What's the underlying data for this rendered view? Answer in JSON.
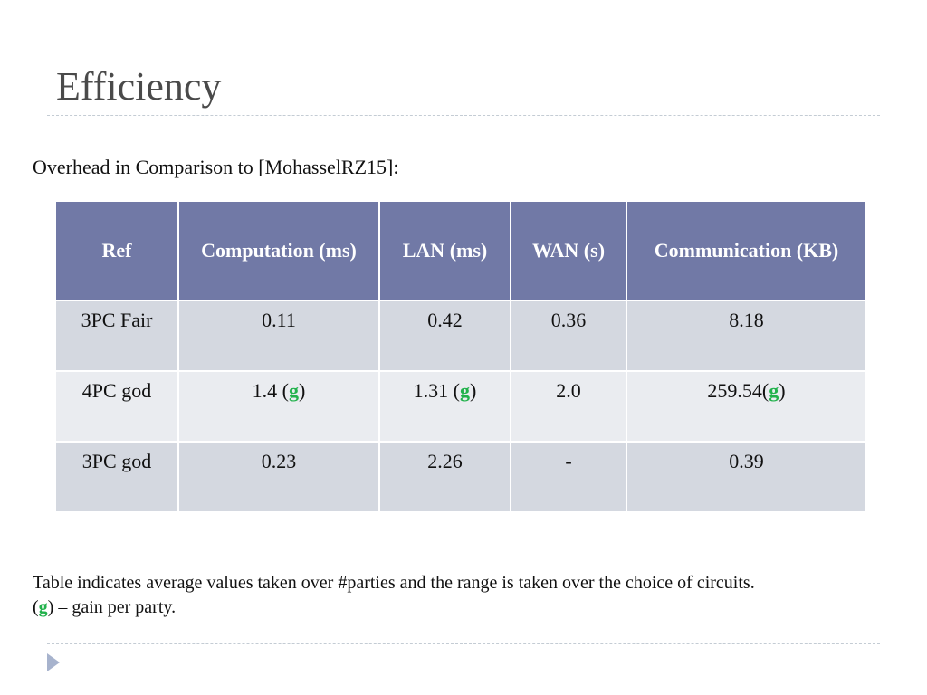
{
  "slide": {
    "title": "Efficiency",
    "subtitle": "Overhead in Comparison to [MohasselRZ15]:"
  },
  "table": {
    "headers": [
      "Ref",
      "Computation (ms)",
      "LAN (ms)",
      "WAN (s)",
      "Communication (KB)"
    ],
    "rows": [
      {
        "ref": "3PC Fair",
        "computation": {
          "value": "0.11",
          "open": "",
          "gain": "",
          "close": ""
        },
        "lan": {
          "value": "0.42",
          "open": "",
          "gain": "",
          "close": ""
        },
        "wan": "0.36",
        "communication": {
          "value": "8.18",
          "open": "",
          "gain": "",
          "close": ""
        }
      },
      {
        "ref": "4PC god",
        "computation": {
          "value": "1.4 ",
          "open": "(",
          "gain": "g",
          "close": ")"
        },
        "lan": {
          "value": "1.31 ",
          "open": "(",
          "gain": "g",
          "close": ")"
        },
        "wan": "2.0",
        "communication": {
          "value": "259.54",
          "open": "(",
          "gain": "g",
          "close": ")"
        }
      },
      {
        "ref": "3PC god",
        "computation": {
          "value": "0.23",
          "open": "",
          "gain": "",
          "close": ""
        },
        "lan": {
          "value": "2.26",
          "open": "",
          "gain": "",
          "close": ""
        },
        "wan": "-",
        "communication": {
          "value": "0.39",
          "open": "",
          "gain": "",
          "close": ""
        }
      }
    ]
  },
  "notes": {
    "line1": "Table indicates average values taken over #parties and the range is taken over the choice of circuits.",
    "line2": {
      "open": "(",
      "gain": "g",
      "rest": ") – gain per party."
    }
  },
  "colors": {
    "header_bg": "#7179a6",
    "row_odd_bg": "#d4d8e0",
    "row_even_bg": "#eaecf0",
    "gain_green": "#22b24c",
    "title_gray": "#4a4a4a",
    "bullet_arrow": "#a7b3cd"
  },
  "icons": {
    "bullet": "triangle-right-icon"
  }
}
